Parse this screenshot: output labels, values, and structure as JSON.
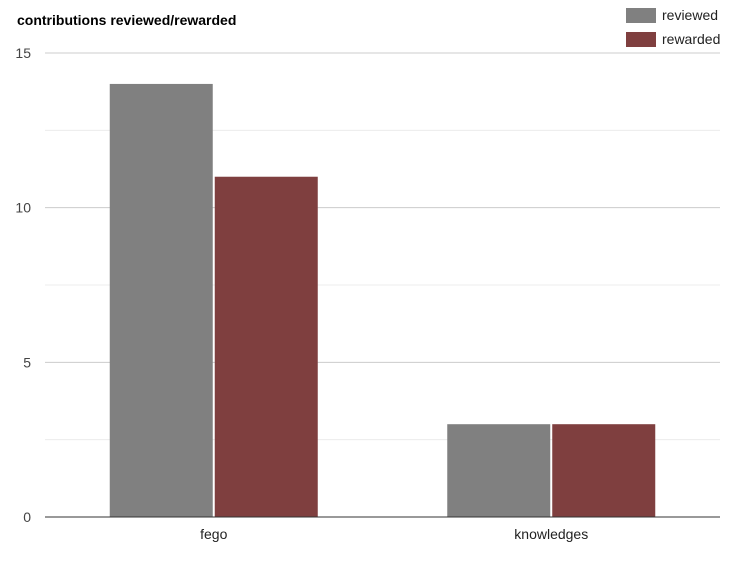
{
  "chart_data": {
    "type": "bar",
    "title": "contributions reviewed/rewarded",
    "categories": [
      "fego",
      "knowledges"
    ],
    "series": [
      {
        "name": "reviewed",
        "values": [
          14,
          3
        ],
        "color": "#808080"
      },
      {
        "name": "rewarded",
        "values": [
          11,
          3
        ],
        "color": "#7f3f3f"
      }
    ],
    "ylim": [
      0,
      15
    ],
    "yticks": [
      0,
      5,
      10,
      15
    ],
    "grid": true,
    "legend_position": "top-right"
  }
}
